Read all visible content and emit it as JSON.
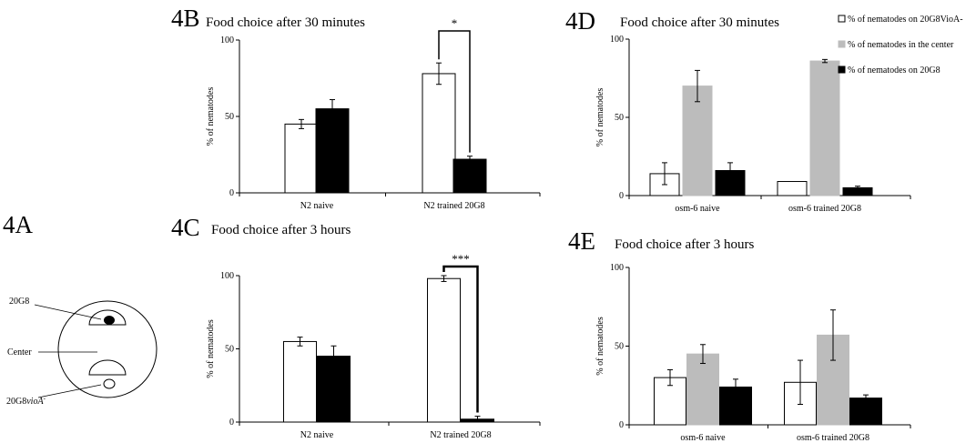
{
  "chart_data": [
    {
      "panel": "4B",
      "type": "bar",
      "title": "Food choice after 30 minutes",
      "ylabel": "% of nematodes",
      "ylim": [
        0,
        100
      ],
      "yticks": [
        0,
        50,
        100
      ],
      "categories": [
        "N2 naive",
        "N2 trained 20G8"
      ],
      "series": [
        {
          "color": "#ffffff",
          "values": [
            45,
            78
          ],
          "errors": [
            3,
            7
          ]
        },
        {
          "color": "#000000",
          "values": [
            55,
            22
          ],
          "errors": [
            6,
            2
          ]
        }
      ],
      "significance": [
        {
          "label": "*",
          "category": 1
        }
      ]
    },
    {
      "panel": "4C",
      "type": "bar",
      "title": "Food choice after 3 hours",
      "ylabel": "% of nematodes",
      "ylim": [
        0,
        100
      ],
      "yticks": [
        0,
        50,
        100
      ],
      "categories": [
        "N2 naive",
        "N2 trained 20G8"
      ],
      "series": [
        {
          "color": "#ffffff",
          "values": [
            55,
            98
          ],
          "errors": [
            3,
            2
          ]
        },
        {
          "color": "#000000",
          "values": [
            45,
            2
          ],
          "errors": [
            7,
            2
          ]
        }
      ],
      "significance": [
        {
          "label": "***",
          "category": 1
        }
      ]
    },
    {
      "panel": "4D",
      "type": "bar",
      "title": "Food choice after 30 minutes",
      "ylabel": "% of nematodes",
      "ylim": [
        0,
        100
      ],
      "yticks": [
        0,
        50,
        100
      ],
      "categories": [
        "osm-6 naive",
        "osm-6 trained 20G8"
      ],
      "legend": "top-right",
      "series": [
        {
          "name": "% of nematodes on 20G8VioA-",
          "color": "#ffffff",
          "values": [
            14,
            9
          ],
          "errors": [
            7,
            0
          ]
        },
        {
          "name": "% of nematodes in the center",
          "color": "#bcbcbc",
          "values": [
            70,
            86
          ],
          "errors": [
            10,
            1
          ]
        },
        {
          "name": "% of nematodes on 20G8",
          "color": "#000000",
          "values": [
            16,
            5
          ],
          "errors": [
            5,
            1
          ]
        }
      ]
    },
    {
      "panel": "4E",
      "type": "bar",
      "title": "Food choice after 3 hours",
      "ylabel": "% of nematodes",
      "ylim": [
        0,
        100
      ],
      "yticks": [
        0,
        50,
        100
      ],
      "categories": [
        "osm-6 naive",
        "osm-6 trained 20G8"
      ],
      "series": [
        {
          "color": "#ffffff",
          "values": [
            30,
            27
          ],
          "errors": [
            5,
            14
          ]
        },
        {
          "color": "#bcbcbc",
          "values": [
            45,
            57
          ],
          "errors": [
            6,
            16
          ]
        },
        {
          "color": "#000000",
          "values": [
            24,
            17
          ],
          "errors": [
            5,
            2
          ]
        }
      ]
    }
  ],
  "panels": {
    "b": {
      "label": "4B"
    },
    "c": {
      "label": "4C"
    },
    "d": {
      "label": "4D"
    },
    "e": {
      "label": "4E"
    }
  },
  "diagram": {
    "label": "4A",
    "labels": {
      "top": "20G8",
      "center": "Center",
      "bottom_plain": "20G8",
      "bottom_italic": "vioA",
      "bottom_sup": "-"
    }
  }
}
